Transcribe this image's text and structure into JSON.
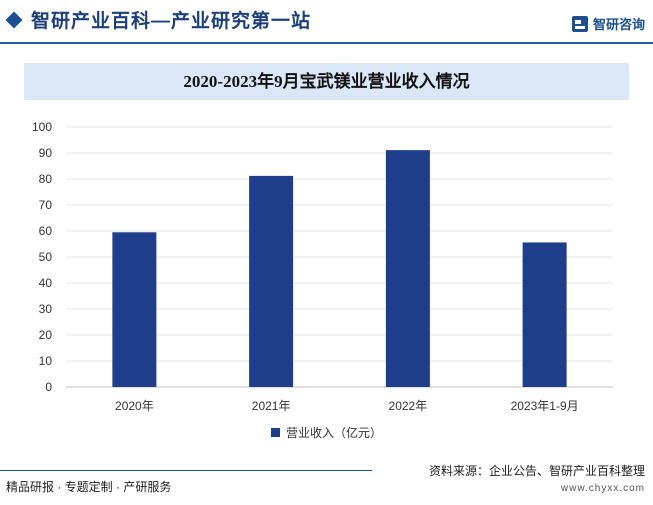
{
  "header": {
    "site_title": "智研产业百科—产业研究第一站",
    "brand": "智研咨询",
    "accent_color": "#1d4f91"
  },
  "chart_data": {
    "type": "bar",
    "title": "2020-2023年9月宝武镁业营业收入情况",
    "categories": [
      "2020年",
      "2021年",
      "2022年",
      "2023年1-9月"
    ],
    "series": [
      {
        "name": "营业收入（亿元）",
        "values": [
          59.5,
          81.2,
          91.1,
          55.6
        ],
        "color": "#1e3d8a"
      }
    ],
    "ylim": [
      0,
      100
    ],
    "yticks": [
      "0",
      "10",
      "20",
      "30",
      "40",
      "50",
      "60",
      "70",
      "80",
      "90",
      "100"
    ],
    "xlabel": "",
    "ylabel": "",
    "grid": true,
    "legend_position": "bottom"
  },
  "footer": {
    "left_text": "精品研报 · 专题定制 · 产研服务",
    "source": "资料来源：企业公告、智研产业百科整理",
    "website": "www.chyxx.com"
  }
}
